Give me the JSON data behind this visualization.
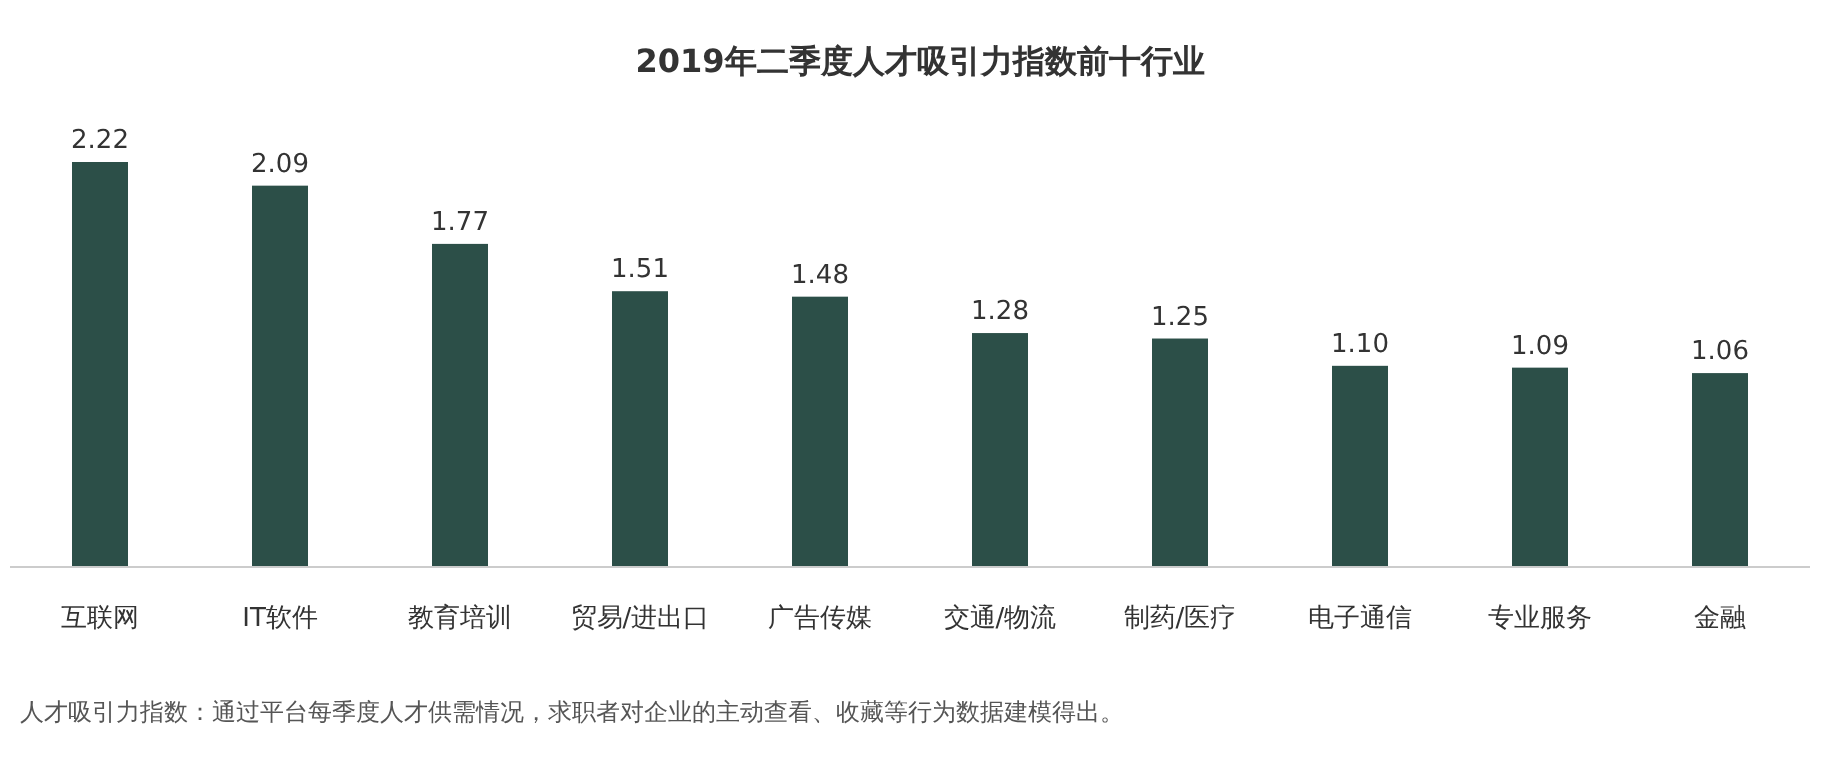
{
  "chart_data": {
    "type": "bar",
    "title": "2019年二季度人才吸引力指数前十行业",
    "categories": [
      "互联网",
      "IT软件",
      "教育培训",
      "贸易/进出口",
      "广告传媒",
      "交通/物流",
      "制药/医疗",
      "电子通信",
      "专业服务",
      "金融"
    ],
    "values": [
      2.22,
      2.09,
      1.77,
      1.51,
      1.48,
      1.28,
      1.25,
      1.1,
      1.09,
      1.06
    ],
    "value_labels": [
      "2.22",
      "2.09",
      "1.77",
      "1.51",
      "1.48",
      "1.28",
      "1.25",
      "1.10",
      "1.09",
      "1.06"
    ],
    "color": "#2c4f48",
    "annotations": [
      "人才吸引力指数：通过平台每季度人才供需情况，求职者对企业的主动查看、收藏等行为数据建模得出。"
    ]
  }
}
